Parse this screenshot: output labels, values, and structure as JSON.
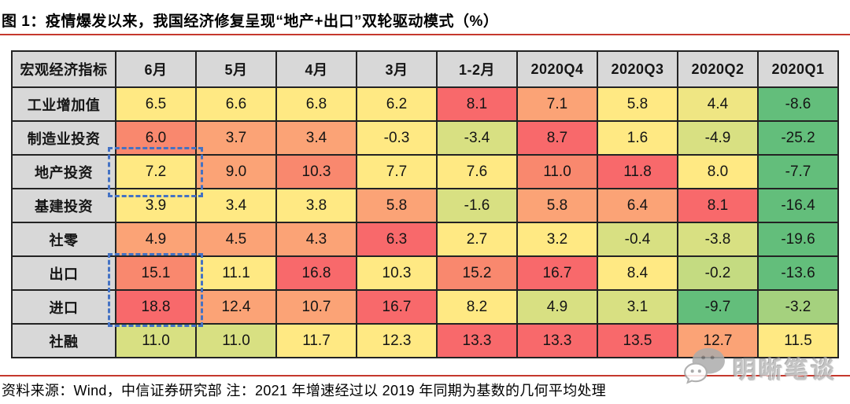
{
  "page": {
    "title": "图 1：疫情爆发以来，我国经济修复呈现“地产+出口”双轮驱动模式（%）",
    "source_note": "资料来源：Wind，中信证券研究部  注：2021 年增速经过以 2019 年同期为基数的几何平均处理",
    "watermark_text": "明晰笔谈",
    "accent_line_color": "#C5382D"
  },
  "chart_data": {
    "type": "heatmap",
    "figure_label": "图 1",
    "title": "疫情爆发以来，我国经济修复呈现“地产+出口”双轮驱动模式（%）",
    "unit": "%",
    "corner_header": "宏观经济指标",
    "columns": [
      "6月",
      "5月",
      "4月",
      "3月",
      "1-2月",
      "2020Q4",
      "2020Q3",
      "2020Q2",
      "2020Q1"
    ],
    "rows": [
      {
        "label": "工业增加值",
        "values": [
          6.5,
          6.6,
          6.8,
          6.2,
          8.1,
          7.1,
          5.8,
          4.4,
          -8.6
        ],
        "colors": [
          "yellow",
          "yellow",
          "yellow",
          "yellow",
          "red",
          "orange",
          "yellow",
          "paleyellow",
          "green"
        ]
      },
      {
        "label": "制造业投资",
        "values": [
          6.0,
          3.7,
          3.4,
          -0.3,
          -3.4,
          8.7,
          1.6,
          -4.9,
          -25.2
        ],
        "colors": [
          "redorange",
          "orange",
          "orange",
          "yellow",
          "yellowgreen",
          "red",
          "yellow",
          "yellowgreen",
          "green"
        ]
      },
      {
        "label": "地产投资",
        "values": [
          7.2,
          9.0,
          10.3,
          7.7,
          7.6,
          11.0,
          11.8,
          8.0,
          -7.7
        ],
        "colors": [
          "yellow",
          "orange",
          "redorange",
          "yellow",
          "yellow",
          "redorange",
          "red",
          "yellow",
          "green"
        ]
      },
      {
        "label": "基建投资",
        "values": [
          3.9,
          3.4,
          3.8,
          5.8,
          -1.6,
          5.8,
          6.4,
          8.1,
          -16.4
        ],
        "colors": [
          "yellow",
          "yellow",
          "yellow",
          "orange",
          "yellowgreen",
          "orange",
          "orange",
          "red",
          "green"
        ]
      },
      {
        "label": "社零",
        "values": [
          4.9,
          4.5,
          4.3,
          6.3,
          2.7,
          3.2,
          -0.4,
          -3.8,
          -19.6
        ],
        "colors": [
          "orange",
          "orange",
          "orange",
          "red",
          "yellow",
          "yellow",
          "yellowgreen",
          "yellowgreen",
          "green"
        ]
      },
      {
        "label": "出口",
        "values": [
          15.1,
          11.1,
          16.8,
          10.3,
          15.2,
          16.7,
          8.4,
          -0.2,
          -13.6
        ],
        "colors": [
          "redorange",
          "yellow",
          "red",
          "yellow",
          "redorange",
          "red",
          "yellow",
          "palegreen",
          "green"
        ]
      },
      {
        "label": "进口",
        "values": [
          18.8,
          12.4,
          10.7,
          16.7,
          8.2,
          4.9,
          3.1,
          -9.7,
          -3.2
        ],
        "colors": [
          "red",
          "orange",
          "orange",
          "red",
          "yellow",
          "yellowgreen",
          "yellowgreen",
          "green",
          "lightgreen"
        ]
      },
      {
        "label": "社融",
        "values": [
          11.0,
          11.0,
          11.7,
          12.3,
          13.3,
          13.3,
          13.5,
          12.7,
          11.5
        ],
        "colors": [
          "yellowgreen",
          "yellowgreen",
          "yellow",
          "yellow",
          "red",
          "red",
          "red",
          "orange",
          "yellow"
        ]
      }
    ],
    "palette": {
      "red": "#F8696B",
      "redorange": "#F9886E",
      "orange": "#FBA376",
      "yellow": "#FFE983",
      "paleyellow": "#EFE683",
      "yellowgreen": "#D8E082",
      "palegreen": "#C4DB81",
      "lightgreen": "#A5D17E",
      "green": "#63BE7B"
    },
    "header_bg": "#D8D8D8",
    "grid_color": "#232323",
    "highlight_color": "#4472C4",
    "highlights": [
      {
        "column": "6月",
        "rows": [
          "地产投资"
        ]
      },
      {
        "column": "6月",
        "rows": [
          "出口",
          "进口"
        ]
      }
    ],
    "legend_position": "none",
    "grid": true,
    "source": "资料来源：Wind，中信证券研究部",
    "note": "注：2021 年增速经过以 2019 年同期为基数的几何平均处理"
  }
}
